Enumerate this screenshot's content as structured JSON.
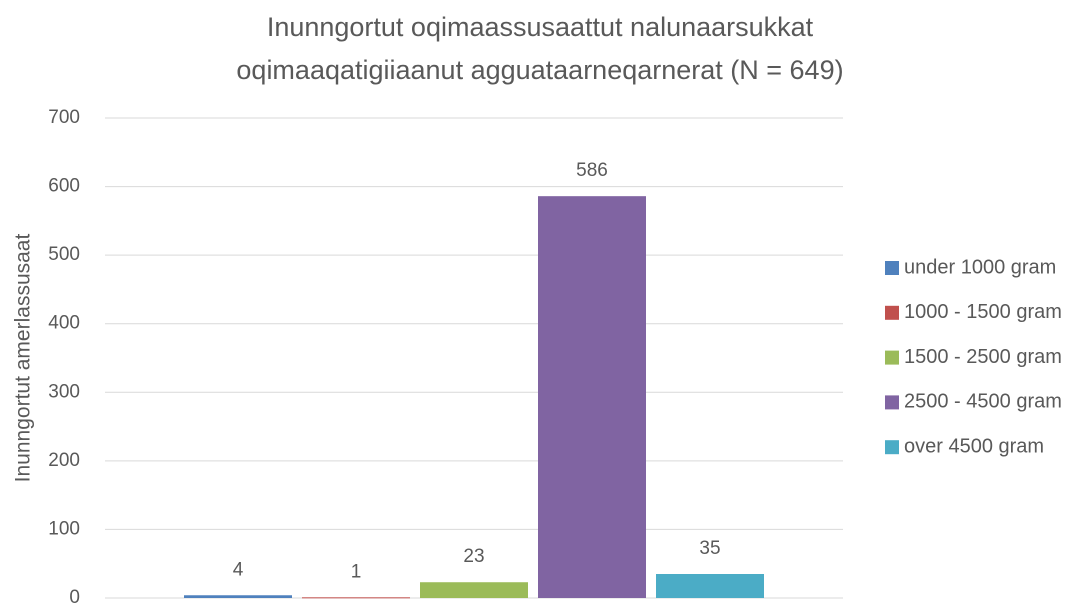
{
  "chart_data": {
    "type": "bar",
    "title": "Inunngortut oqimaassusaattut nalunaarsukkat oqimaaqatigiiaanut agguataarneqarnerat (N = 649)",
    "y_label": "Inunngortut amerlassusaat",
    "categories": [
      null
    ],
    "series": [
      {
        "name": "under 1000 gram",
        "color": "#4f81bd",
        "values": [
          4
        ]
      },
      {
        "name": "1000 - 1500 gram",
        "color": "#c0504d",
        "values": [
          1
        ]
      },
      {
        "name": "1500 - 2500 gram",
        "color": "#9bbb59",
        "values": [
          23
        ]
      },
      {
        "name": "2500 - 4500 gram",
        "color": "#8064a2",
        "values": [
          586
        ]
      },
      {
        "name": "over 4500 gram",
        "color": "#4bacc6",
        "values": [
          35
        ]
      }
    ],
    "ylim": [
      0,
      700
    ],
    "yticks": [
      0,
      100,
      200,
      300,
      400,
      500,
      600,
      700
    ],
    "grid": true,
    "legend": "right",
    "data_labels": true
  }
}
